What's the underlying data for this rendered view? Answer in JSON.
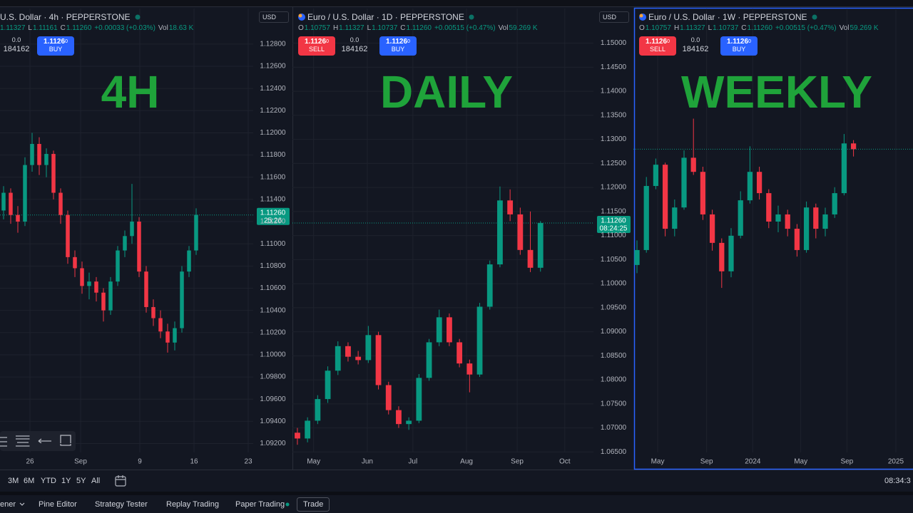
{
  "chart_data": [
    {
      "type": "candlestick",
      "up_color": "#089981",
      "down_color": "#f23645",
      "grid": true,
      "ylim": [
        1.0912,
        1.1312
      ],
      "yticks": [
        {
          "value": 1.128,
          "label": "1.12800"
        },
        {
          "value": 1.126,
          "label": "1.12600"
        },
        {
          "value": 1.124,
          "label": "1.12400"
        },
        {
          "value": 1.122,
          "label": "1.12200"
        },
        {
          "value": 1.12,
          "label": "1.12000"
        },
        {
          "value": 1.118,
          "label": "1.11800"
        },
        {
          "value": 1.116,
          "label": "1.11600"
        },
        {
          "value": 1.114,
          "label": "1.11400"
        },
        {
          "value": 1.112,
          "label": "1.11200"
        },
        {
          "value": 1.11,
          "label": "1.11000"
        },
        {
          "value": 1.108,
          "label": "1.10800"
        },
        {
          "value": 1.106,
          "label": "1.10600"
        },
        {
          "value": 1.104,
          "label": "1.10400"
        },
        {
          "value": 1.102,
          "label": "1.10200"
        },
        {
          "value": 1.1,
          "label": "1.10000"
        },
        {
          "value": 1.098,
          "label": "1.09800"
        },
        {
          "value": 1.096,
          "label": "1.09600"
        },
        {
          "value": 1.094,
          "label": "1.09400"
        },
        {
          "value": 1.092,
          "label": "1.09200"
        }
      ],
      "xlim": [
        -0.5,
        35
      ],
      "xticks": [
        {
          "value": 3.7,
          "label": "26"
        },
        {
          "value": 10.8,
          "label": "Sep"
        },
        {
          "value": 19.1,
          "label": "9"
        },
        {
          "value": 26.7,
          "label": "16"
        },
        {
          "value": 34.3,
          "label": "23"
        }
      ],
      "open": [
        1.113,
        1.1146,
        1.1126,
        1.112,
        1.1171,
        1.119,
        1.1171,
        1.1181,
        1.1146,
        1.1126,
        1.1088,
        1.1078,
        1.1062,
        1.1066,
        1.1056,
        1.104,
        1.1066,
        1.1094,
        1.1107,
        1.112,
        1.1075,
        1.1043,
        1.1033,
        1.1021,
        1.1011,
        1.1024,
        1.1075,
        1.1094
      ],
      "high": [
        1.1152,
        1.115,
        1.1134,
        1.1178,
        1.12,
        1.1196,
        1.1186,
        1.1184,
        1.115,
        1.113,
        1.1094,
        1.1084,
        1.1074,
        1.107,
        1.106,
        1.107,
        1.1098,
        1.1112,
        1.1154,
        1.1124,
        1.108,
        1.105,
        1.104,
        1.1028,
        1.103,
        1.108,
        1.1098,
        1.1132
      ],
      "low": [
        1.1122,
        1.1118,
        1.111,
        1.1116,
        1.1165,
        1.1162,
        1.116,
        1.114,
        1.1118,
        1.1082,
        1.107,
        1.1055,
        1.105,
        1.1048,
        1.103,
        1.1036,
        1.1062,
        1.1088,
        1.11,
        1.107,
        1.1038,
        1.1026,
        1.1015,
        1.1002,
        1.1004,
        1.102,
        1.107,
        1.109
      ],
      "close": [
        1.1146,
        1.1126,
        1.112,
        1.1171,
        1.119,
        1.1171,
        1.1181,
        1.1146,
        1.1126,
        1.1088,
        1.1078,
        1.1062,
        1.1066,
        1.1056,
        1.104,
        1.1066,
        1.1094,
        1.1107,
        1.112,
        1.1075,
        1.1043,
        1.1033,
        1.1021,
        1.1011,
        1.1024,
        1.1075,
        1.1094,
        1.1126
      ],
      "last_price": {
        "value": 1.1126,
        "label": "1.11260"
      }
    },
    {
      "type": "candlestick",
      "up_color": "#089981",
      "down_color": "#f23645",
      "grid": true,
      "ylim": [
        1.0649,
        1.1572
      ],
      "yticks": [
        {
          "value": 1.15,
          "label": "1.15000"
        },
        {
          "value": 1.145,
          "label": "1.14500"
        },
        {
          "value": 1.14,
          "label": "1.14000"
        },
        {
          "value": 1.135,
          "label": "1.13500"
        },
        {
          "value": 1.13,
          "label": "1.13000"
        },
        {
          "value": 1.125,
          "label": "1.12500"
        },
        {
          "value": 1.12,
          "label": "1.12000"
        },
        {
          "value": 1.115,
          "label": "1.11500"
        },
        {
          "value": 1.11,
          "label": "1.11000"
        },
        {
          "value": 1.105,
          "label": "1.10500"
        },
        {
          "value": 1.1,
          "label": "1.10000"
        },
        {
          "value": 1.095,
          "label": "1.09500"
        },
        {
          "value": 1.09,
          "label": "1.09000"
        },
        {
          "value": 1.085,
          "label": "1.08500"
        },
        {
          "value": 1.08,
          "label": "1.08000"
        },
        {
          "value": 1.075,
          "label": "1.07500"
        },
        {
          "value": 1.07,
          "label": "1.07000"
        },
        {
          "value": 1.065,
          "label": "1.06500"
        }
      ],
      "xlim": [
        -0.49,
        29.23
      ],
      "xticks": [
        {
          "value": 1.6,
          "label": "May"
        },
        {
          "value": 6.9,
          "label": "Jun"
        },
        {
          "value": 11.4,
          "label": "Jul"
        },
        {
          "value": 16.7,
          "label": "Aug"
        },
        {
          "value": 21.7,
          "label": "Sep"
        },
        {
          "value": 26.4,
          "label": "Oct"
        }
      ],
      "open": [
        1.069,
        1.0678,
        1.0715,
        1.076,
        1.0819,
        1.087,
        1.0848,
        1.0841,
        1.0893,
        1.0789,
        1.0737,
        1.0708,
        1.0715,
        1.0804,
        1.0878,
        1.093,
        1.0878,
        1.0834,
        1.0811,
        1.0952,
        1.104,
        1.1173,
        1.1144,
        1.107,
        1.1033
      ],
      "high": [
        1.07,
        1.0722,
        1.0768,
        1.0828,
        1.088,
        1.0878,
        1.086,
        1.0912,
        1.09,
        1.0796,
        1.0745,
        1.0722,
        1.0812,
        1.0885,
        1.0946,
        1.0938,
        1.0885,
        1.0842,
        1.096,
        1.1048,
        1.1202,
        1.1196,
        1.1158,
        1.115,
        1.113
      ],
      "low": [
        1.0665,
        1.067,
        1.0708,
        1.0752,
        1.081,
        1.0838,
        1.0832,
        1.0835,
        1.078,
        1.0728,
        1.07,
        1.0696,
        1.071,
        1.0798,
        1.087,
        1.087,
        1.0826,
        1.0774,
        1.0806,
        1.0946,
        1.1034,
        1.113,
        1.106,
        1.1024,
        1.1025
      ],
      "close": [
        1.0678,
        1.0715,
        1.076,
        1.0819,
        1.087,
        1.0848,
        1.0841,
        1.0893,
        1.0789,
        1.0737,
        1.0708,
        1.0715,
        1.0804,
        1.0878,
        1.093,
        1.0878,
        1.0834,
        1.0811,
        1.0952,
        1.104,
        1.1173,
        1.1144,
        1.107,
        1.1033,
        1.1126
      ],
      "last_price": {
        "value": 1.1126,
        "label": "1.11260"
      }
    },
    {
      "type": "candlestick",
      "up_color": "#089981",
      "down_color": "#f23645",
      "grid": true,
      "ylim": [
        0.9644,
        1.1813
      ],
      "xlim": [
        -0.38,
        29.32
      ],
      "xticks": [
        {
          "value": 2.2,
          "label": "May"
        },
        {
          "value": 7.4,
          "label": "Sep"
        },
        {
          "value": 12.3,
          "label": "2024"
        },
        {
          "value": 17.4,
          "label": "May"
        },
        {
          "value": 22.3,
          "label": "Sep"
        },
        {
          "value": 27.5,
          "label": "2025"
        }
      ],
      "open": [
        1.056,
        1.0633,
        1.0946,
        1.105,
        1.0737,
        1.0841,
        1.1084,
        1.1015,
        1.0807,
        1.0668,
        1.0529,
        1.0703,
        1.0876,
        1.1015,
        1.0911,
        1.0772,
        1.0807,
        1.0737,
        1.0633,
        1.0841,
        1.0737,
        1.0807,
        1.0911,
        1.1154
      ],
      "high": [
        1.068,
        1.099,
        1.108,
        1.106,
        1.088,
        1.112,
        1.1275,
        1.104,
        1.083,
        1.069,
        1.074,
        1.092,
        1.114,
        1.104,
        1.093,
        1.085,
        1.083,
        1.076,
        1.087,
        1.086,
        1.084,
        1.094,
        1.12,
        1.117
      ],
      "low": [
        1.052,
        1.062,
        1.093,
        1.07,
        1.07,
        1.083,
        1.1,
        1.078,
        1.063,
        1.0448,
        1.05,
        1.069,
        1.086,
        1.088,
        1.074,
        1.072,
        1.07,
        1.0601,
        1.062,
        1.069,
        1.07,
        1.079,
        1.09,
        1.109
      ],
      "close": [
        1.0633,
        1.0946,
        1.105,
        1.0737,
        1.0841,
        1.1084,
        1.1015,
        1.0807,
        1.0668,
        1.0529,
        1.0703,
        1.0876,
        1.1015,
        1.0911,
        1.0772,
        1.0807,
        1.0737,
        1.0633,
        1.0841,
        1.0737,
        1.0807,
        1.0911,
        1.1154,
        1.1126
      ],
      "last_price": 1.1126
    }
  ],
  "panels": [
    {
      "title": "U.S. Dollar · 4h · PEPPERSTONE",
      "currency": "USD",
      "ohlc": [
        {
          "v": "1.11327"
        },
        {
          "k": "L",
          "v": "1.11161"
        },
        {
          "k": "C",
          "v": "1.11260"
        },
        {
          "v": "+0.00033 (+0.03%)"
        },
        {
          "k": "Vol",
          "v": "18.63 K"
        }
      ],
      "spread": "0.0",
      "volume": "184162",
      "buy": {
        "price": "1.1126",
        "pip": "0",
        "label": "BUY"
      },
      "label": "4H",
      "countdown": "25:26"
    },
    {
      "title": "Euro / U.S. Dollar · 1D · PEPPERSTONE",
      "currency": "USD",
      "ohlc": [
        {
          "k": "O",
          "v": "1.10757"
        },
        {
          "k": "H",
          "v": "1.11327"
        },
        {
          "k": "L",
          "v": "1.10737"
        },
        {
          "k": "C",
          "v": "1.11260"
        },
        {
          "v": "+0.00515 (+0.47%)"
        },
        {
          "k": "Vol",
          "v": "59.269 K"
        }
      ],
      "sell": {
        "price": "1.1126",
        "pip": "0",
        "label": "SELL"
      },
      "spread": "0.0",
      "volume": "184162",
      "buy": {
        "price": "1.1126",
        "pip": "0",
        "label": "BUY"
      },
      "label": "DAILY",
      "countdown": "08:24:25"
    },
    {
      "title": "Euro / U.S. Dollar · 1W · PEPPERSTONE",
      "ohlc": [
        {
          "k": "O",
          "v": "1.10757"
        },
        {
          "k": "H",
          "v": "1.11327"
        },
        {
          "k": "L",
          "v": "1.10737"
        },
        {
          "k": "C",
          "v": "1.11260"
        },
        {
          "v": "+0.00515 (+0.47%)"
        },
        {
          "k": "Vol",
          "v": "59.269 K"
        }
      ],
      "sell": {
        "price": "1.1126",
        "pip": "0",
        "label": "SELL"
      },
      "spread": "0.0",
      "volume": "184162",
      "buy": {
        "price": "1.1126",
        "pip": "0",
        "label": "BUY"
      },
      "label": "WEEKLY"
    }
  ],
  "toolbar": {
    "ranges": [
      "3M",
      "6M",
      "YTD",
      "1Y",
      "5Y",
      "All"
    ],
    "clock": "08:34:3"
  },
  "tabs": [
    "ener",
    "Pine Editor",
    "Strategy Tester",
    "Replay Trading",
    "Paper Trading",
    "Trade"
  ]
}
